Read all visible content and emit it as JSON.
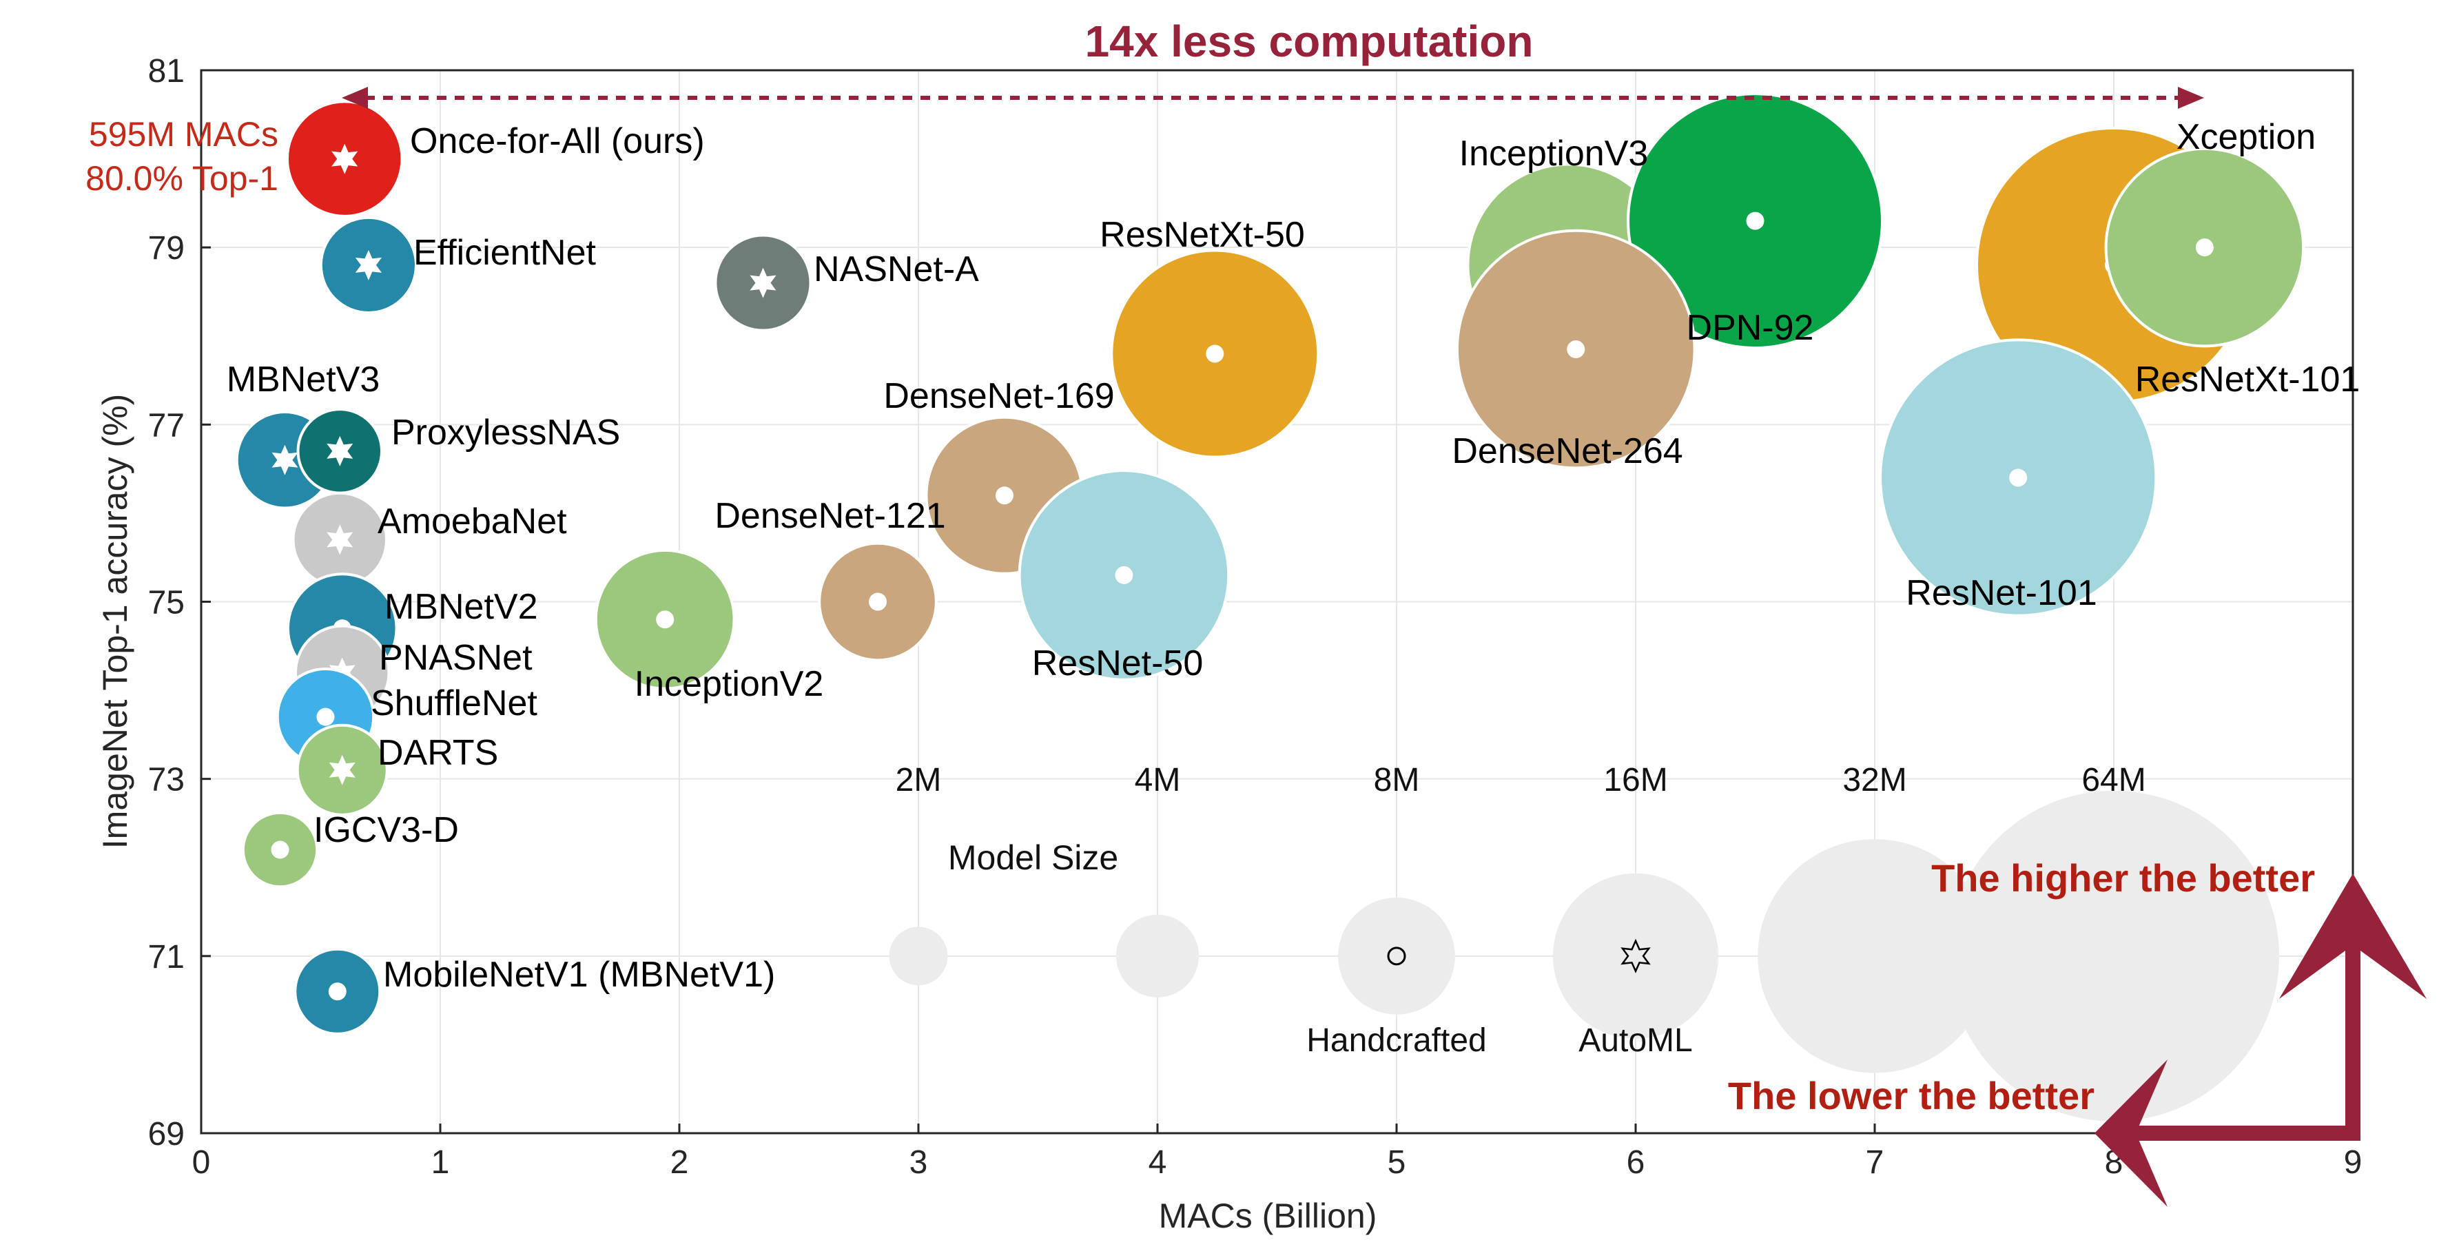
{
  "chart_data": {
    "type": "scatter",
    "title": "",
    "xlabel": "MACs (Billion)",
    "ylabel": "ImageNet Top-1 accuracy (%)",
    "xlim": [
      0,
      9
    ],
    "ylim": [
      69,
      81
    ],
    "xticks": [
      0,
      1,
      2,
      3,
      4,
      5,
      6,
      7,
      8,
      9
    ],
    "yticks": [
      69,
      71,
      73,
      75,
      77,
      79,
      81
    ],
    "grid": true,
    "points": [
      {
        "name": "Once-for-All (ours)",
        "x": 0.6,
        "y": 80.0,
        "size_m": 7.7,
        "color": "#e0201b",
        "marker": "star"
      },
      {
        "name": "EfficientNet",
        "x": 0.7,
        "y": 78.8,
        "size_m": 5.3,
        "color": "#2588a7",
        "marker": "star"
      },
      {
        "name": "NASNet-A",
        "x": 2.35,
        "y": 78.6,
        "size_m": 5.3,
        "color": "#6f7d79",
        "marker": "star"
      },
      {
        "name": "ResNetXt-50",
        "x": 4.24,
        "y": 77.8,
        "size_m": 25,
        "color": "#e5a423",
        "marker": "dot"
      },
      {
        "name": "InceptionV3",
        "x": 5.72,
        "y": 78.8,
        "size_m": 23.8,
        "color": "#9cc87d",
        "marker": "dot"
      },
      {
        "name": "DPN-92",
        "x": 6.5,
        "y": 79.3,
        "size_m": 37.8,
        "color": "#0aa548",
        "marker": "dot"
      },
      {
        "name": "DenseNet-264",
        "x": 5.75,
        "y": 77.85,
        "size_m": 33,
        "color": "#c9a67d",
        "marker": "dot"
      },
      {
        "name": "ResNetXt-101",
        "x": 8.0,
        "y": 78.8,
        "size_m": 44,
        "color": "#e5a423",
        "marker": "dot"
      },
      {
        "name": "Xception",
        "x": 8.38,
        "y": 79.0,
        "size_m": 22.8,
        "color": "#9cc87d",
        "marker": "dot"
      },
      {
        "name": "MBNetV3",
        "x": 0.35,
        "y": 76.6,
        "size_m": 5.4,
        "color": "#2588a7",
        "marker": "star"
      },
      {
        "name": "ProxylessNAS",
        "x": 0.58,
        "y": 76.7,
        "size_m": 4.1,
        "color": "#0f7270",
        "marker": "star"
      },
      {
        "name": "DenseNet-169",
        "x": 3.36,
        "y": 76.2,
        "size_m": 14.3,
        "color": "#c9a67d",
        "marker": "dot"
      },
      {
        "name": "ResNet-101",
        "x": 7.6,
        "y": 76.4,
        "size_m": 44.5,
        "color": "#a3d7dd",
        "marker": "dot"
      },
      {
        "name": "AmoebaNet",
        "x": 0.58,
        "y": 75.7,
        "size_m": 5.1,
        "color": "#c9c9c9",
        "marker": "star"
      },
      {
        "name": "DenseNet-121",
        "x": 2.83,
        "y": 75.0,
        "size_m": 8.0,
        "color": "#c9a67d",
        "marker": "dot"
      },
      {
        "name": "ResNet-50",
        "x": 3.86,
        "y": 75.3,
        "size_m": 25.6,
        "color": "#a3d7dd",
        "marker": "dot"
      },
      {
        "name": "InceptionV2",
        "x": 1.94,
        "y": 74.8,
        "size_m": 11.2,
        "color": "#9cc87d",
        "marker": "dot"
      },
      {
        "name": "MBNetV2",
        "x": 0.59,
        "y": 74.7,
        "size_m": 6.9,
        "color": "#2588a7",
        "marker": "dot"
      },
      {
        "name": "PNASNet",
        "x": 0.59,
        "y": 74.2,
        "size_m": 5.1,
        "color": "#c9c9c9",
        "marker": "star"
      },
      {
        "name": "ShuffleNet",
        "x": 0.52,
        "y": 73.7,
        "size_m": 5.4,
        "color": "#3fb0e8",
        "marker": "dot"
      },
      {
        "name": "DARTS",
        "x": 0.59,
        "y": 73.1,
        "size_m": 4.7,
        "color": "#9cc87d",
        "marker": "star"
      },
      {
        "name": "IGCV3-D",
        "x": 0.33,
        "y": 72.2,
        "size_m": 3.2,
        "color": "#9cc87d",
        "marker": "dot"
      },
      {
        "name": "MobileNetV1 (MBNetV1)",
        "x": 0.57,
        "y": 70.6,
        "size_m": 4.2,
        "color": "#2588a7",
        "marker": "dot"
      }
    ],
    "size_legend": {
      "title": "Model Size",
      "entries": [
        {
          "label": "2M",
          "x": 3,
          "y": 71,
          "size_m": 2
        },
        {
          "label": "4M",
          "x": 4,
          "y": 71,
          "size_m": 4
        },
        {
          "label": "8M",
          "x": 5,
          "y": 71,
          "size_m": 8
        },
        {
          "label": "16M",
          "x": 6,
          "y": 71,
          "size_m": 16
        },
        {
          "label": "32M",
          "x": 7,
          "y": 71,
          "size_m": 32
        },
        {
          "label": "64M",
          "x": 8,
          "y": 71,
          "size_m": 64
        }
      ],
      "marker_labels": [
        {
          "label": "Handcrafted",
          "marker": "circle",
          "x": 5
        },
        {
          "label": "AutoML",
          "marker": "star",
          "x": 6
        }
      ]
    },
    "annotations": {
      "top_arrow": "14x less computation",
      "ofa_macs": "595M MACs",
      "ofa_top1": "80.0% Top-1",
      "higher_better": "The higher the better",
      "lower_better": "The lower the better"
    },
    "colors": {
      "accent": "#97233a",
      "ofa_text": "#c42a1a",
      "legend_bubble": "#ececec",
      "grid": "#e6e6e6"
    }
  }
}
